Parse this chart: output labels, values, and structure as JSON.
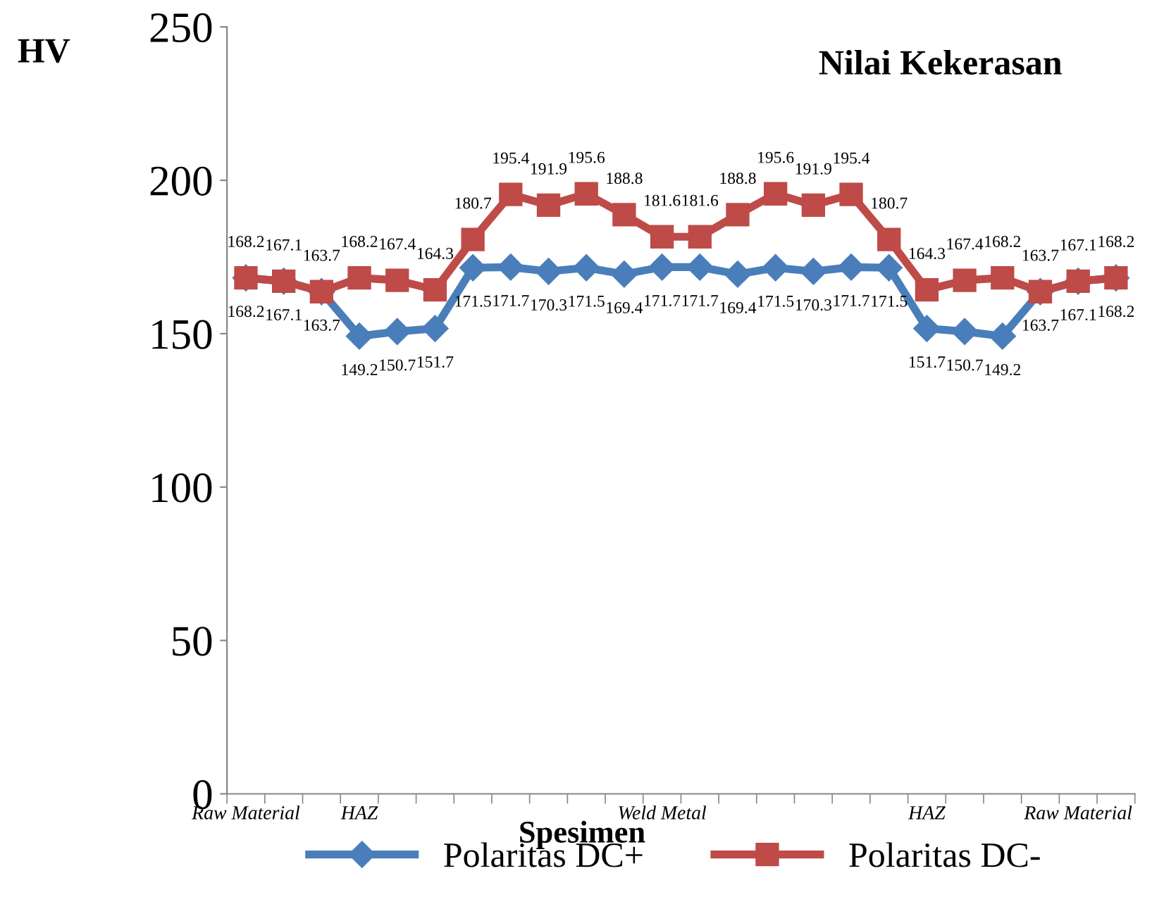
{
  "chart_data": {
    "type": "line",
    "title": "Nilai Kekerasan",
    "xlabel": "Spesimen",
    "ylabel": "HV",
    "categories": [
      "Raw Material",
      null,
      null,
      "HAZ",
      null,
      null,
      null,
      null,
      null,
      null,
      null,
      "Weld Metal",
      null,
      null,
      null,
      null,
      null,
      null,
      "HAZ",
      null,
      null,
      null,
      "Raw Material",
      null
    ],
    "series": [
      {
        "name": "Polaritas DC+",
        "color": "#4a7ebb",
        "marker": "diamond",
        "values": [
          168.2,
          167.1,
          163.7,
          149.2,
          150.7,
          151.7,
          171.5,
          171.7,
          170.3,
          171.5,
          169.4,
          171.7,
          171.7,
          169.4,
          171.5,
          170.3,
          171.7,
          171.5,
          151.7,
          150.7,
          149.2,
          163.7,
          167.1,
          168.2
        ]
      },
      {
        "name": "Polaritas DC-",
        "color": "#be4b48",
        "marker": "square",
        "values": [
          168.2,
          167.1,
          163.7,
          168.2,
          167.4,
          164.3,
          180.7,
          195.4,
          191.9,
          195.6,
          188.8,
          181.6,
          181.6,
          188.8,
          195.6,
          191.9,
          195.4,
          180.7,
          164.3,
          167.4,
          168.2,
          163.7,
          167.1,
          168.2
        ]
      }
    ],
    "ylim": [
      0,
      250
    ],
    "yticks": [
      0,
      50,
      100,
      150,
      200,
      250
    ],
    "grid": false,
    "legend": "bottom",
    "data_labels": true
  }
}
